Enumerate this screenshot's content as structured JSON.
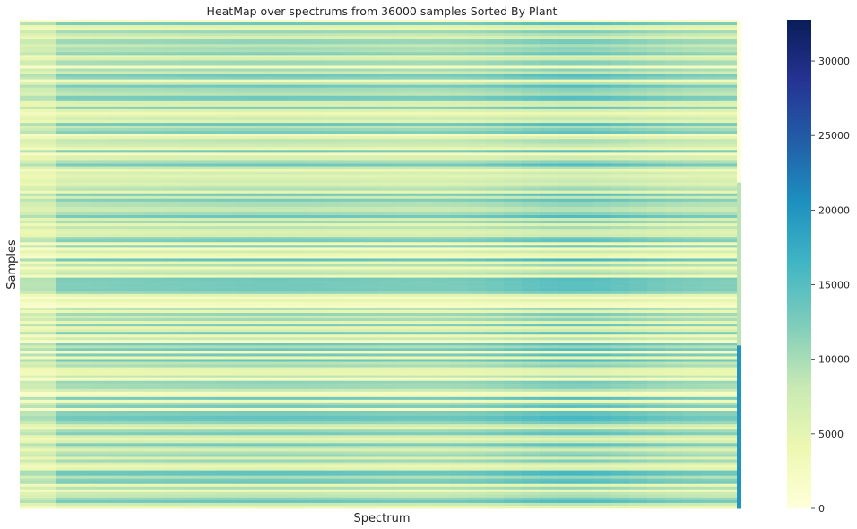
{
  "chart_data": {
    "type": "heatmap",
    "title": "HeatMap over spectrums from 36000 samples Sorted By Plant",
    "xlabel": "Spectrum",
    "ylabel": "Samples",
    "colormap": "YlGnBu",
    "color_range": [
      0,
      32768
    ],
    "colorbar_ticks": [
      0,
      5000,
      10000,
      15000,
      20000,
      25000,
      30000
    ],
    "colorbar_tick_labels": [
      "0",
      "5000",
      "10000",
      "15000",
      "20000",
      "25000",
      "30000"
    ],
    "x_ticks_visible": false,
    "y_ticks_visible": false,
    "groups": [
      {
        "sample_fraction": 0.333,
        "last_column_value": 200
      },
      {
        "sample_fraction": 0.333,
        "last_column_value": 9000
      },
      {
        "sample_fraction": 0.334,
        "last_column_value": 20000
      }
    ]
  },
  "colors": {
    "text": "#262626",
    "background": "#ffffff"
  }
}
